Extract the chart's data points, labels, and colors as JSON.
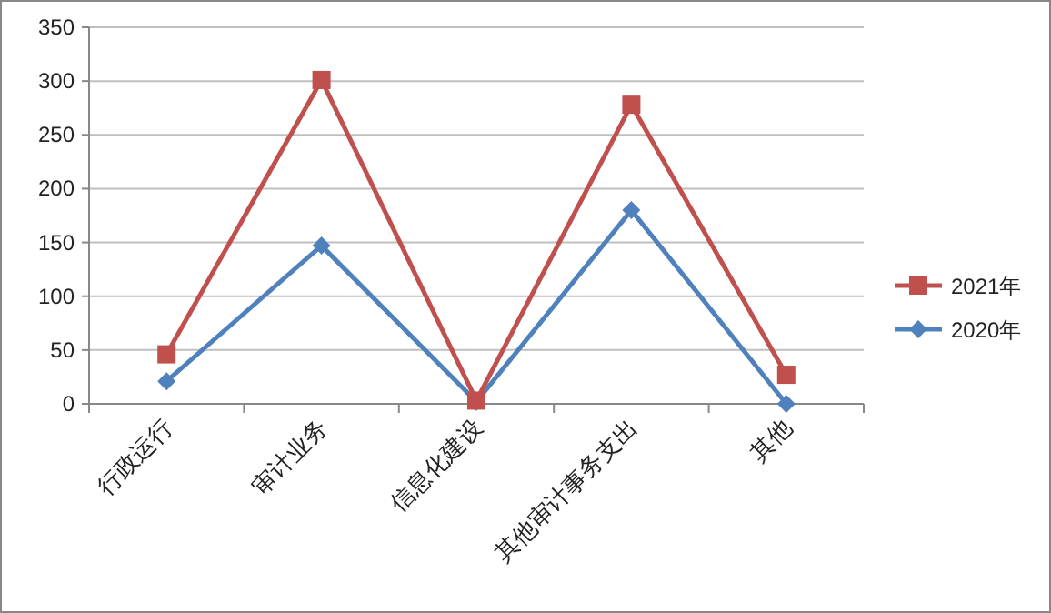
{
  "chart_data": {
    "type": "line",
    "categories": [
      "行政运行",
      "审计业务",
      "信息化建设",
      "其他审计事务支出",
      "其他"
    ],
    "series": [
      {
        "name": "2021年",
        "color": "#c0504d",
        "marker": "square",
        "values": [
          46,
          301,
          3,
          278,
          27
        ]
      },
      {
        "name": "2020年",
        "color": "#4f81bd",
        "marker": "diamond",
        "values": [
          21,
          147,
          2,
          180,
          0
        ]
      }
    ],
    "ylim": [
      0,
      350
    ],
    "yticks": [
      0,
      50,
      100,
      150,
      200,
      250,
      300,
      350
    ],
    "grid": "y",
    "legend": "right"
  }
}
